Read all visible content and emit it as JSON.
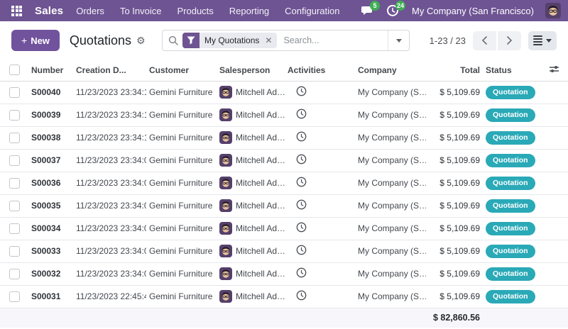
{
  "topbar": {
    "app_name": "Sales",
    "menus": [
      "Orders",
      "To Invoice",
      "Products",
      "Reporting",
      "Configuration"
    ],
    "messages_badge": "5",
    "activities_badge": "24",
    "company": "My Company (San Francisco)"
  },
  "control_panel": {
    "new_button": "New",
    "title": "Quotations",
    "filter_tag": "My Quotations",
    "search_placeholder": "Search...",
    "pager": "1-23 / 23"
  },
  "table": {
    "headers": [
      "Number",
      "Creation D...",
      "Customer",
      "Salesperson",
      "Activities",
      "Company",
      "Total",
      "Status"
    ],
    "rows": [
      {
        "number": "S00040",
        "date": "11/23/2023 23:34:1",
        "customer": "Gemini Furniture",
        "salesperson": "Mitchell Ad…",
        "company": "My Company (S…",
        "total": "$ 5,109.69",
        "status": "Quotation"
      },
      {
        "number": "S00039",
        "date": "11/23/2023 23:34:1",
        "customer": "Gemini Furniture",
        "salesperson": "Mitchell Ad…",
        "company": "My Company (S…",
        "total": "$ 5,109.69",
        "status": "Quotation"
      },
      {
        "number": "S00038",
        "date": "11/23/2023 23:34:1",
        "customer": "Gemini Furniture",
        "salesperson": "Mitchell Ad…",
        "company": "My Company (S…",
        "total": "$ 5,109.69",
        "status": "Quotation"
      },
      {
        "number": "S00037",
        "date": "11/23/2023 23:34:0",
        "customer": "Gemini Furniture",
        "salesperson": "Mitchell Ad…",
        "company": "My Company (S…",
        "total": "$ 5,109.69",
        "status": "Quotation"
      },
      {
        "number": "S00036",
        "date": "11/23/2023 23:34:0",
        "customer": "Gemini Furniture",
        "salesperson": "Mitchell Ad…",
        "company": "My Company (S…",
        "total": "$ 5,109.69",
        "status": "Quotation"
      },
      {
        "number": "S00035",
        "date": "11/23/2023 23:34:0",
        "customer": "Gemini Furniture",
        "salesperson": "Mitchell Ad…",
        "company": "My Company (S…",
        "total": "$ 5,109.69",
        "status": "Quotation"
      },
      {
        "number": "S00034",
        "date": "11/23/2023 23:34:0",
        "customer": "Gemini Furniture",
        "salesperson": "Mitchell Ad…",
        "company": "My Company (S…",
        "total": "$ 5,109.69",
        "status": "Quotation"
      },
      {
        "number": "S00033",
        "date": "11/23/2023 23:34:0",
        "customer": "Gemini Furniture",
        "salesperson": "Mitchell Ad…",
        "company": "My Company (S…",
        "total": "$ 5,109.69",
        "status": "Quotation"
      },
      {
        "number": "S00032",
        "date": "11/23/2023 23:34:0",
        "customer": "Gemini Furniture",
        "salesperson": "Mitchell Ad…",
        "company": "My Company (S…",
        "total": "$ 5,109.69",
        "status": "Quotation"
      },
      {
        "number": "S00031",
        "date": "11/23/2023 22:45:4",
        "customer": "Gemini Furniture",
        "salesperson": "Mitchell Ad…",
        "company": "My Company (S…",
        "total": "$ 5,109.69",
        "status": "Quotation"
      }
    ],
    "footer_total": "$ 82,860.56"
  },
  "colors": {
    "topbar-bg": "#6e5493",
    "primary": "#71539d",
    "teal": "#2aa9b7",
    "green": "#3fae54"
  }
}
